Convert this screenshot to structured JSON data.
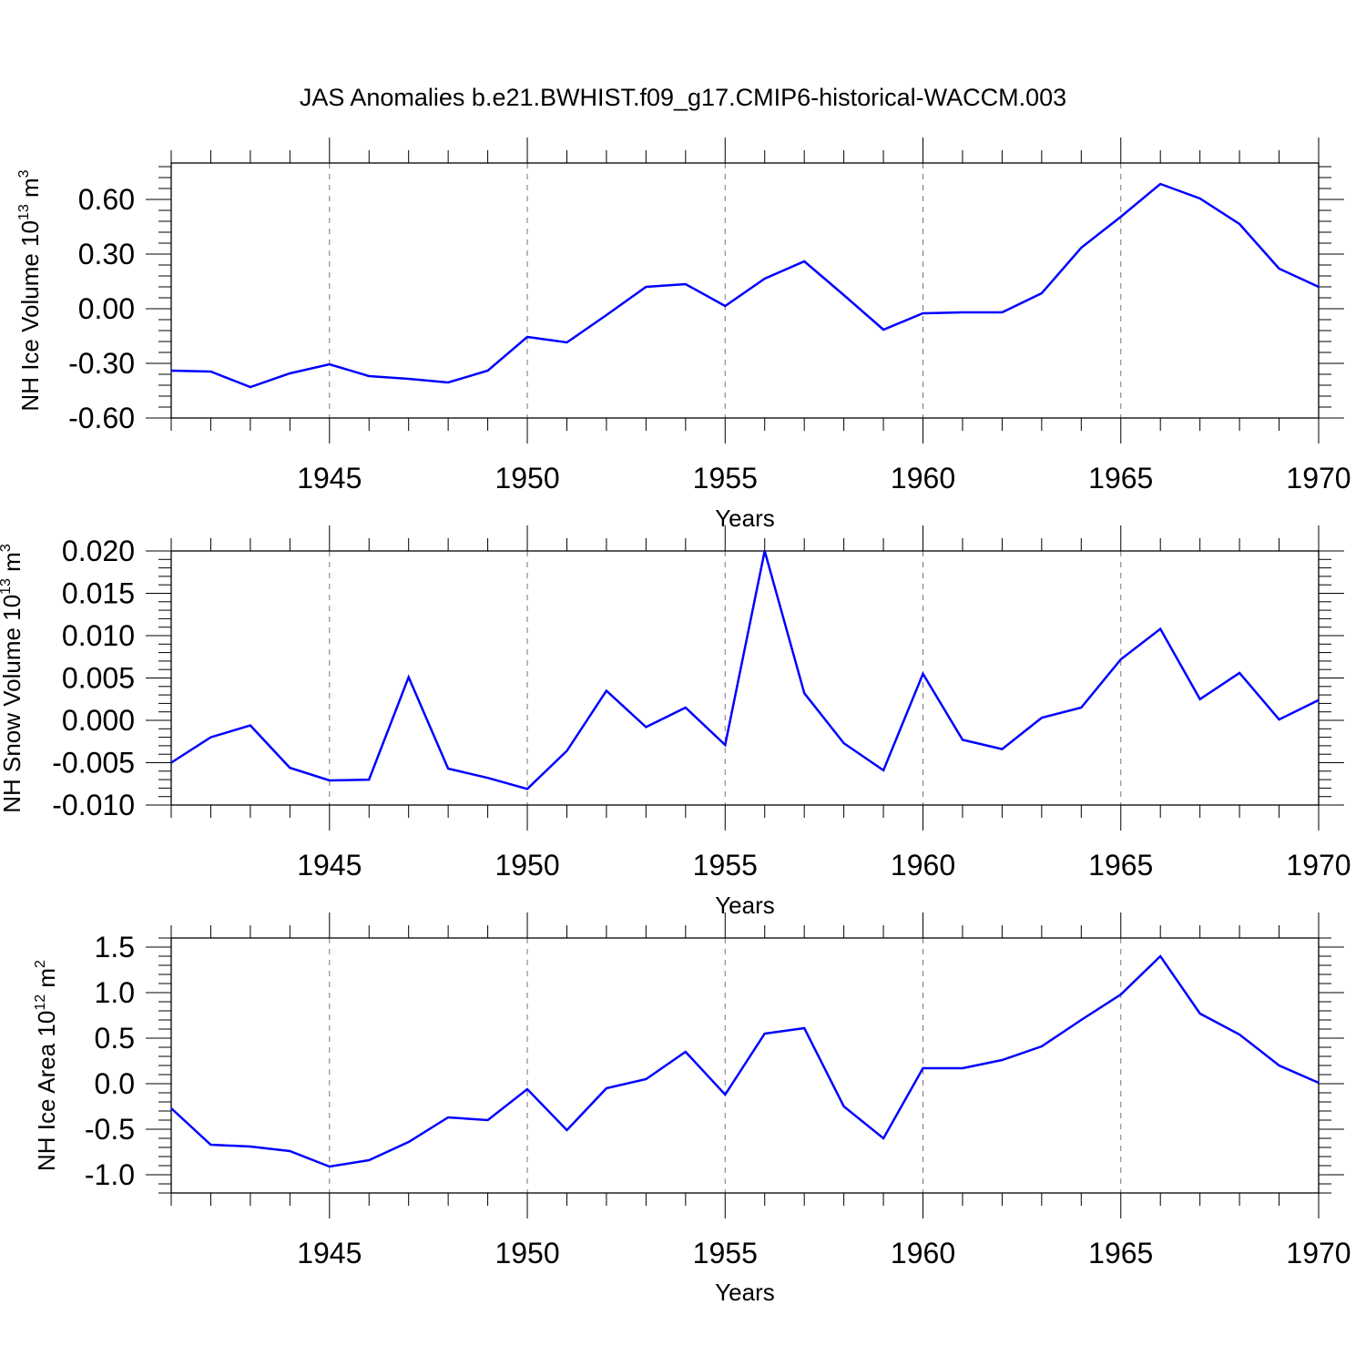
{
  "title": "JAS Anomalies b.e21.BWHIST.f09_g17.CMIP6-historical-WACCM.003",
  "colors": {
    "line": "#0000ff",
    "grid": "#777777",
    "axis": "#000000"
  },
  "chart_data": [
    {
      "type": "line",
      "name": "ice-volume",
      "ylabel": "NH Ice Volume",
      "ylabel_exp": "10",
      "ylabel_exp_power": "13",
      "ylabel_unit": "m",
      "ylabel_unit_power": "3",
      "xlabel": "Years",
      "xlim": [
        1941,
        1970
      ],
      "ylim": [
        -0.6,
        0.8
      ],
      "xticks": [
        1945,
        1950,
        1955,
        1960,
        1965,
        1970
      ],
      "xtick_labels": [
        "1945",
        "1950",
        "1955",
        "1960",
        "1965",
        "1970"
      ],
      "yticks": [
        -0.6,
        -0.3,
        0.0,
        0.3,
        0.6
      ],
      "ytick_labels": [
        "-0.60",
        "-0.30",
        "0.00",
        "0.30",
        "0.60"
      ],
      "grid_x": true,
      "x": [
        1941,
        1942,
        1943,
        1944,
        1945,
        1946,
        1947,
        1948,
        1949,
        1950,
        1951,
        1952,
        1953,
        1954,
        1955,
        1956,
        1957,
        1958,
        1959,
        1960,
        1961,
        1962,
        1963,
        1964,
        1965,
        1966,
        1967,
        1968,
        1969,
        1970
      ],
      "values": [
        -0.34,
        -0.345,
        -0.43,
        -0.355,
        -0.305,
        -0.37,
        -0.385,
        -0.405,
        -0.34,
        -0.155,
        -0.185,
        -0.035,
        0.12,
        0.135,
        0.015,
        0.165,
        0.26,
        0.075,
        -0.115,
        -0.025,
        -0.02,
        -0.02,
        0.085,
        0.335,
        0.505,
        0.685,
        0.605,
        0.465,
        0.22,
        0.12
      ]
    },
    {
      "type": "line",
      "name": "snow-volume",
      "ylabel": "NH Snow Volume",
      "ylabel_exp": "10",
      "ylabel_exp_power": "13",
      "ylabel_unit": "m",
      "ylabel_unit_power": "3",
      "xlabel": "Years",
      "xlim": [
        1941,
        1970
      ],
      "ylim": [
        -0.01,
        0.02
      ],
      "xticks": [
        1945,
        1950,
        1955,
        1960,
        1965,
        1970
      ],
      "xtick_labels": [
        "1945",
        "1950",
        "1955",
        "1960",
        "1965",
        "1970"
      ],
      "yticks": [
        -0.01,
        -0.005,
        0.0,
        0.005,
        0.01,
        0.015,
        0.02
      ],
      "ytick_labels": [
        "-0.010",
        "-0.005",
        "0.000",
        "0.005",
        "0.010",
        "0.015",
        "0.020"
      ],
      "grid_x": true,
      "x": [
        1941,
        1942,
        1943,
        1944,
        1945,
        1946,
        1947,
        1948,
        1949,
        1950,
        1951,
        1952,
        1953,
        1954,
        1955,
        1956,
        1957,
        1958,
        1959,
        1960,
        1961,
        1962,
        1963,
        1964,
        1965,
        1966,
        1967,
        1968,
        1969,
        1970
      ],
      "values": [
        -0.005,
        -0.002,
        -0.0006,
        -0.0056,
        -0.0071,
        -0.007,
        0.0051,
        -0.0057,
        -0.0068,
        -0.0081,
        -0.0036,
        0.0035,
        -0.0008,
        0.0015,
        -0.0029,
        0.02,
        0.0032,
        -0.0027,
        -0.0059,
        0.0055,
        -0.0023,
        -0.0034,
        0.0003,
        0.0015,
        0.0072,
        0.0108,
        0.0025,
        0.0056,
        0.0001,
        0.0024
      ]
    },
    {
      "type": "line",
      "name": "ice-area",
      "ylabel": "NH Ice Area",
      "ylabel_exp": "10",
      "ylabel_exp_power": "12",
      "ylabel_unit": "m",
      "ylabel_unit_power": "2",
      "xlabel": "Years",
      "xlim": [
        1941,
        1970
      ],
      "ylim": [
        -1.2,
        1.6
      ],
      "xticks": [
        1945,
        1950,
        1955,
        1960,
        1965,
        1970
      ],
      "xtick_labels": [
        "1945",
        "1950",
        "1955",
        "1960",
        "1965",
        "1970"
      ],
      "yticks": [
        -1.0,
        -0.5,
        0.0,
        0.5,
        1.0,
        1.5
      ],
      "ytick_labels": [
        "-1.0",
        "-0.5",
        "0.0",
        "0.5",
        "1.0",
        "1.5"
      ],
      "grid_x": true,
      "x": [
        1941,
        1942,
        1943,
        1944,
        1945,
        1946,
        1947,
        1948,
        1949,
        1950,
        1951,
        1952,
        1953,
        1954,
        1955,
        1956,
        1957,
        1958,
        1959,
        1960,
        1961,
        1962,
        1963,
        1964,
        1965,
        1966,
        1967,
        1968,
        1969,
        1970
      ],
      "values": [
        -0.27,
        -0.67,
        -0.69,
        -0.74,
        -0.91,
        -0.84,
        -0.64,
        -0.37,
        -0.4,
        -0.06,
        -0.51,
        -0.05,
        0.05,
        0.35,
        -0.12,
        0.55,
        0.61,
        -0.25,
        -0.6,
        0.17,
        0.17,
        0.26,
        0.41,
        0.7,
        0.98,
        1.4,
        0.77,
        0.54,
        0.2,
        0.01
      ]
    }
  ]
}
